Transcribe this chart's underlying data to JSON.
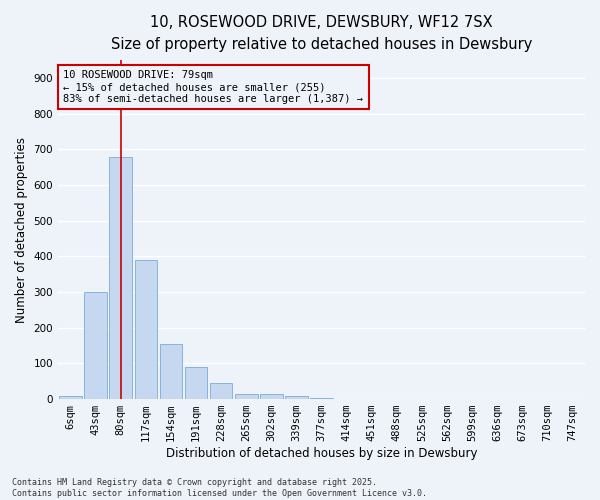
{
  "title1": "10, ROSEWOOD DRIVE, DEWSBURY, WF12 7SX",
  "title2": "Size of property relative to detached houses in Dewsbury",
  "xlabel": "Distribution of detached houses by size in Dewsbury",
  "ylabel": "Number of detached properties",
  "bar_color": "#c5d8f0",
  "bar_edge_color": "#7aadd4",
  "categories": [
    "6sqm",
    "43sqm",
    "80sqm",
    "117sqm",
    "154sqm",
    "191sqm",
    "228sqm",
    "265sqm",
    "302sqm",
    "339sqm",
    "377sqm",
    "414sqm",
    "451sqm",
    "488sqm",
    "525sqm",
    "562sqm",
    "599sqm",
    "636sqm",
    "673sqm",
    "710sqm",
    "747sqm"
  ],
  "values": [
    10,
    300,
    680,
    390,
    155,
    90,
    45,
    15,
    15,
    8,
    4,
    0,
    0,
    0,
    0,
    0,
    0,
    0,
    0,
    0,
    0
  ],
  "ylim": [
    0,
    950
  ],
  "yticks": [
    0,
    100,
    200,
    300,
    400,
    500,
    600,
    700,
    800,
    900
  ],
  "property_line_x": 2,
  "property_line_color": "#cc0000",
  "annotation_text": "10 ROSEWOOD DRIVE: 79sqm\n← 15% of detached houses are smaller (255)\n83% of semi-detached houses are larger (1,387) →",
  "annotation_box_color": "#cc0000",
  "footnote": "Contains HM Land Registry data © Crown copyright and database right 2025.\nContains public sector information licensed under the Open Government Licence v3.0.",
  "background_color": "#eef2f9",
  "grid_color": "#ffffff",
  "title_fontsize": 10.5,
  "subtitle_fontsize": 9.5,
  "tick_fontsize": 7.5,
  "label_fontsize": 8.5,
  "annot_fontsize": 7.5,
  "footnote_fontsize": 6.0
}
